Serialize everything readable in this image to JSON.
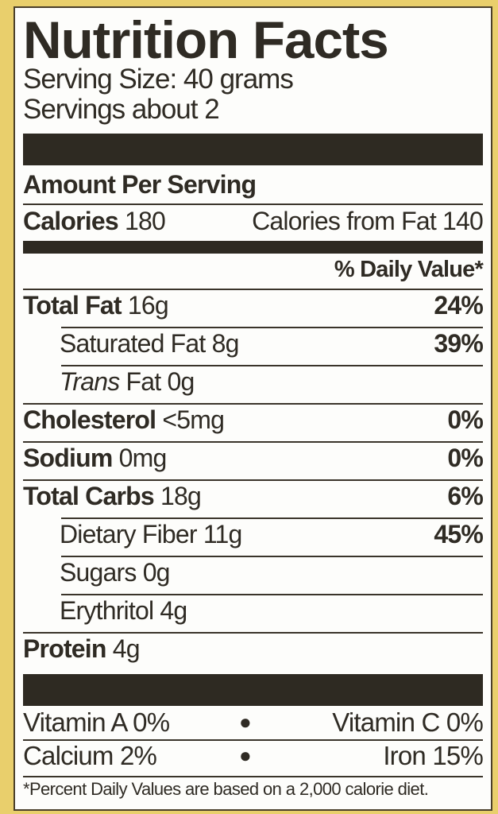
{
  "title": "Nutrition Facts",
  "serving_size": "Serving Size: 40 grams",
  "servings": "Servings about 2",
  "amount_per_serving": "Amount Per Serving",
  "calories": {
    "label": "Calories",
    "value": "180",
    "from_fat": "Calories from Fat 140"
  },
  "daily_value_header": "% Daily Value*",
  "nutrients": [
    {
      "name": "Total Fat",
      "amount": "16g",
      "dv": "24%",
      "bold": true,
      "indent": false
    },
    {
      "name": "Saturated Fat",
      "amount": "8g",
      "dv": "39%",
      "bold": false,
      "indent": true
    },
    {
      "name": "Trans",
      "name_suffix": "Fat",
      "amount": "0g",
      "dv": "",
      "bold": false,
      "indent": true,
      "italic_prefix": true
    },
    {
      "name": "Cholesterol",
      "amount": "<5mg",
      "dv": "0%",
      "bold": true,
      "indent": false
    },
    {
      "name": "Sodium",
      "amount": "0mg",
      "dv": "0%",
      "bold": true,
      "indent": false
    },
    {
      "name": "Total Carbs",
      "amount": "18g",
      "dv": "6%",
      "bold": true,
      "indent": false
    },
    {
      "name": "Dietary Fiber",
      "amount": "11g",
      "dv": "45%",
      "bold": false,
      "indent": true
    },
    {
      "name": "Sugars",
      "amount": "0g",
      "dv": "",
      "bold": false,
      "indent": true
    },
    {
      "name": "Erythritol",
      "amount": "4g",
      "dv": "",
      "bold": false,
      "indent": true
    },
    {
      "name": "Protein",
      "amount": "4g",
      "dv": "",
      "bold": true,
      "indent": false
    }
  ],
  "vitamins": [
    {
      "left": "Vitamin A 0%",
      "right": "Vitamin C 0%"
    },
    {
      "left": "Calcium 2%",
      "right": "Iron 15%"
    }
  ],
  "footnote": "*Percent Daily Values are based on a 2,000 calorie diet.",
  "colors": {
    "background": "#e9cf6c",
    "ink": "#2e2a22",
    "label": "#fdfdfb"
  }
}
